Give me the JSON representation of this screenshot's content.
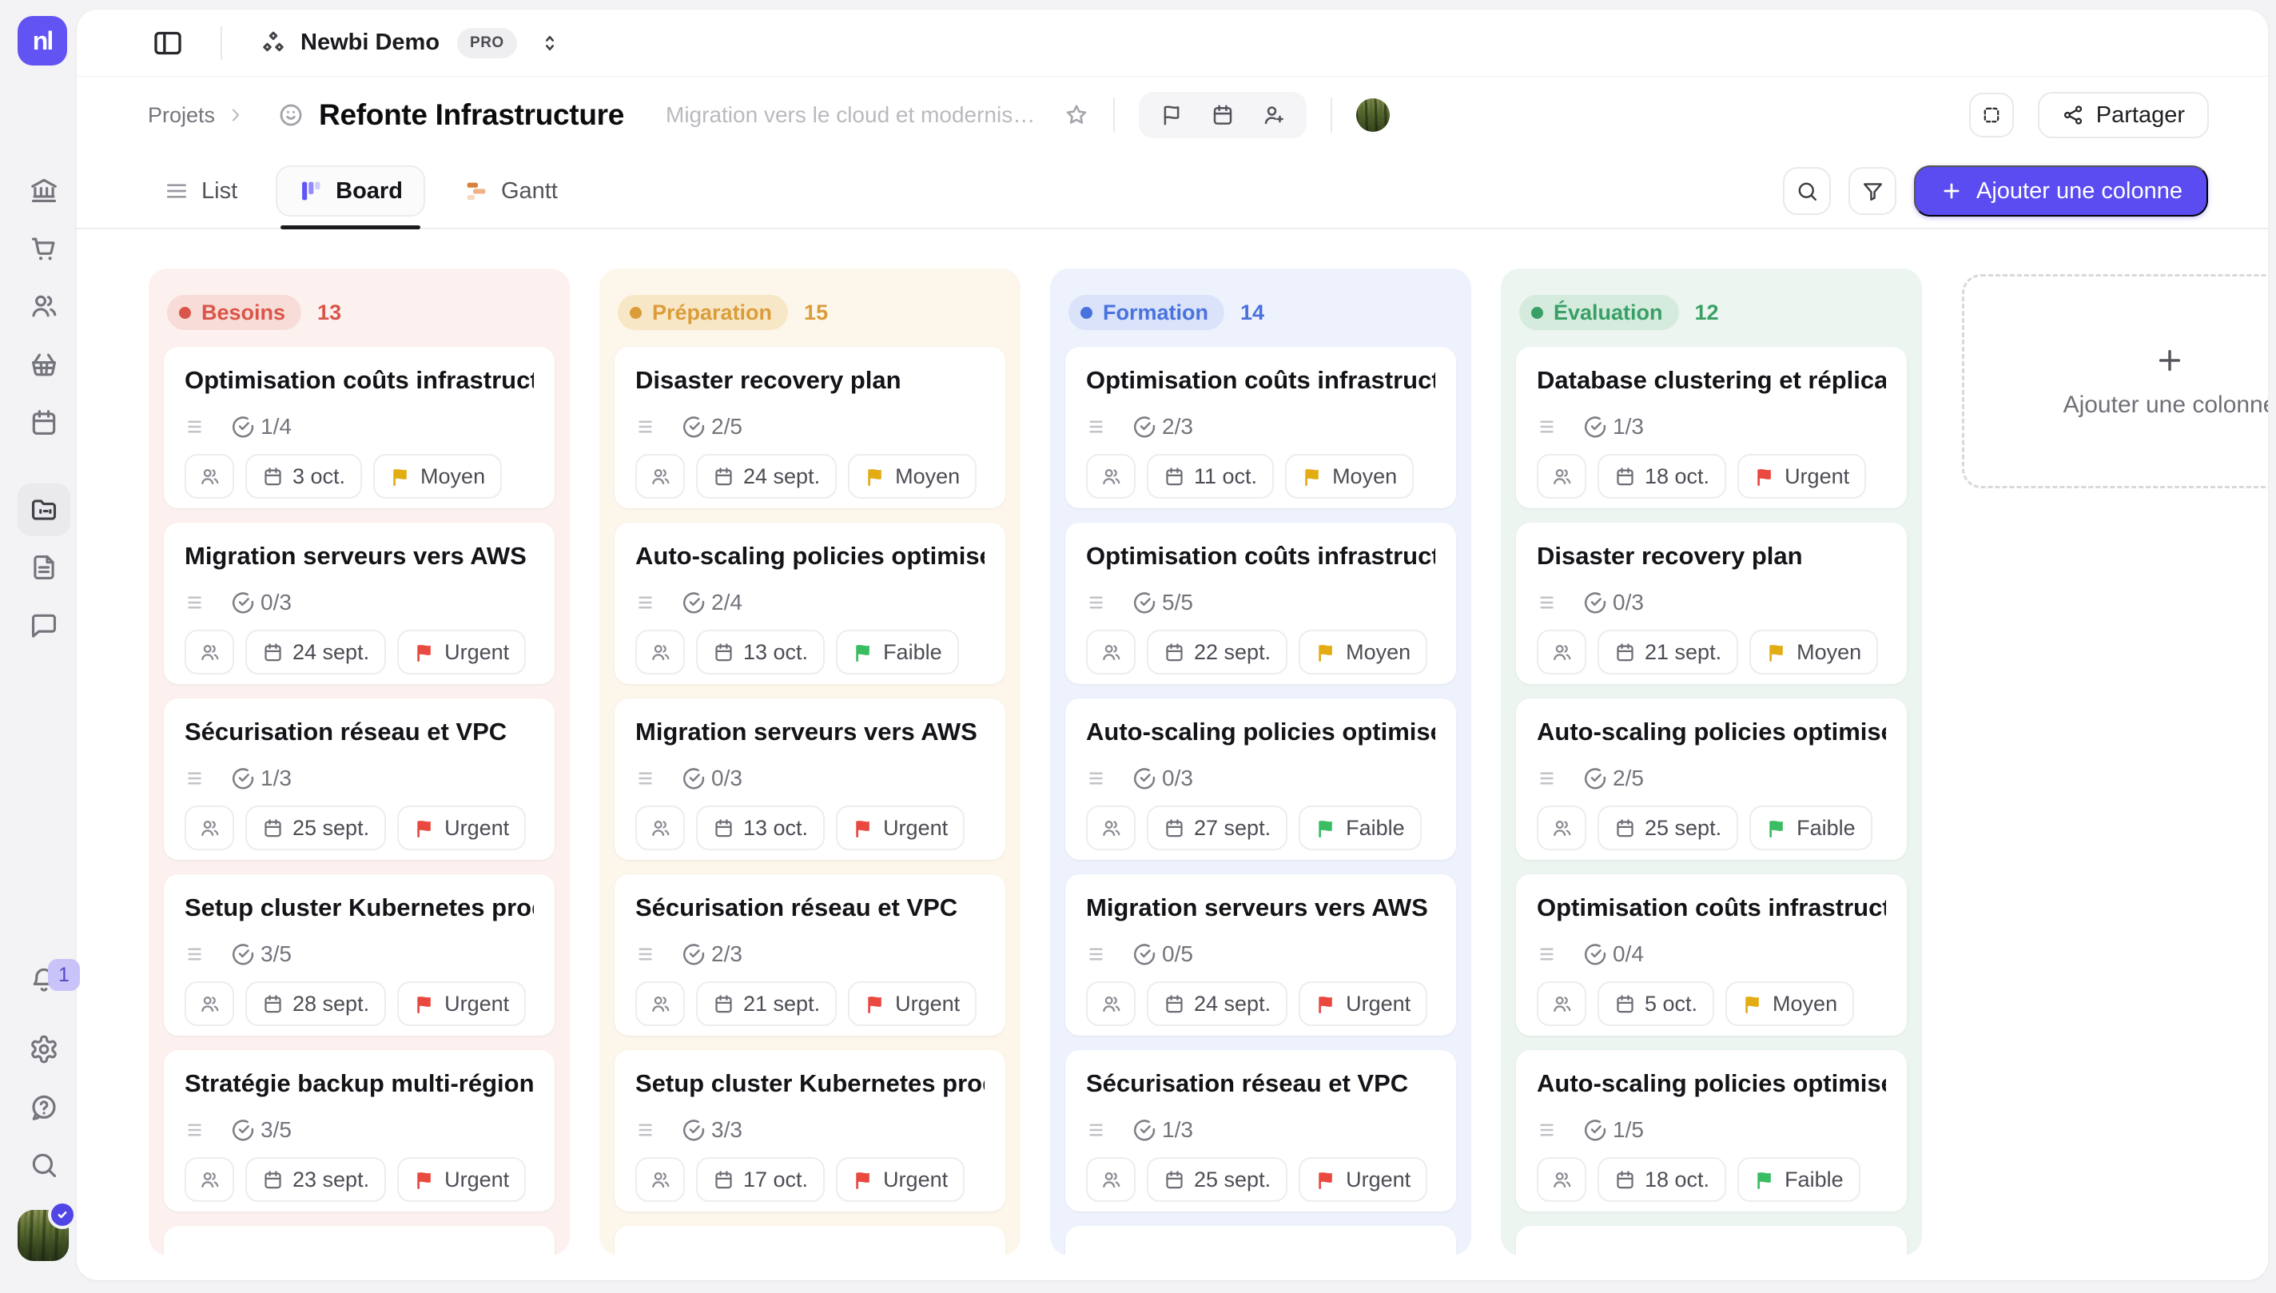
{
  "app": {
    "logo_text": "nl",
    "workspace": "Newbi Demo",
    "plan_badge": "PRO"
  },
  "sidebar": {
    "top_items": [
      {
        "id": "dashboard",
        "active": false
      },
      {
        "id": "bank",
        "active": false
      },
      {
        "id": "cart",
        "active": false
      },
      {
        "id": "users",
        "active": false
      },
      {
        "id": "basket",
        "active": false
      },
      {
        "id": "calendar",
        "active": false
      },
      {
        "id": "projects",
        "active": true
      },
      {
        "id": "documents",
        "active": false
      },
      {
        "id": "chat",
        "active": false
      }
    ],
    "bottom_items": [
      {
        "id": "notifications"
      },
      {
        "id": "settings"
      },
      {
        "id": "help"
      },
      {
        "id": "search"
      }
    ],
    "notification_count": "1"
  },
  "header": {
    "breadcrumb": "Projets",
    "title": "Refonte Infrastructure",
    "subtitle": "Migration vers le cloud et modernis…",
    "share_label": "Partager"
  },
  "tabs": [
    {
      "label": "List",
      "active": false
    },
    {
      "label": "Board",
      "active": true
    },
    {
      "label": "Gantt",
      "active": false
    }
  ],
  "toolbar": {
    "add_column_label": "Ajouter une colonne"
  },
  "board": {
    "add_column_placeholder": "Ajouter une colonne",
    "columns": [
      {
        "name": "Besoins",
        "count": "13",
        "color": "red",
        "cards": [
          {
            "title": "Optimisation coûts infrastructure",
            "progress": "1/4",
            "date": "3 oct.",
            "priority": "Moyen"
          },
          {
            "title": "Migration serveurs vers AWS ECS",
            "progress": "0/3",
            "date": "24 sept.",
            "priority": "Urgent"
          },
          {
            "title": "Sécurisation réseau et VPC",
            "progress": "1/3",
            "date": "25 sept.",
            "priority": "Urgent"
          },
          {
            "title": "Setup cluster Kubernetes produ…",
            "progress": "3/5",
            "date": "28 sept.",
            "priority": "Urgent"
          },
          {
            "title": "Stratégie backup multi-région",
            "progress": "3/5",
            "date": "23 sept.",
            "priority": "Urgent"
          }
        ]
      },
      {
        "name": "Préparation",
        "count": "15",
        "color": "orange",
        "cards": [
          {
            "title": "Disaster recovery plan",
            "progress": "2/5",
            "date": "24 sept.",
            "priority": "Moyen"
          },
          {
            "title": "Auto-scaling policies optimisées",
            "progress": "2/4",
            "date": "13 oct.",
            "priority": "Faible"
          },
          {
            "title": "Migration serveurs vers AWS ECS",
            "progress": "0/3",
            "date": "13 oct.",
            "priority": "Urgent"
          },
          {
            "title": "Sécurisation réseau et VPC",
            "progress": "2/3",
            "date": "21 sept.",
            "priority": "Urgent"
          },
          {
            "title": "Setup cluster Kubernetes produ…",
            "progress": "3/3",
            "date": "17 oct.",
            "priority": "Urgent"
          }
        ]
      },
      {
        "name": "Formation",
        "count": "14",
        "color": "blue",
        "cards": [
          {
            "title": "Optimisation coûts infrastructure",
            "progress": "2/3",
            "date": "11 oct.",
            "priority": "Moyen"
          },
          {
            "title": "Optimisation coûts infrastructure",
            "progress": "5/5",
            "date": "22 sept.",
            "priority": "Moyen"
          },
          {
            "title": "Auto-scaling policies optimisées",
            "progress": "0/3",
            "date": "27 sept.",
            "priority": "Faible"
          },
          {
            "title": "Migration serveurs vers AWS ECS",
            "progress": "0/5",
            "date": "24 sept.",
            "priority": "Urgent"
          },
          {
            "title": "Sécurisation réseau et VPC",
            "progress": "1/3",
            "date": "25 sept.",
            "priority": "Urgent"
          }
        ]
      },
      {
        "name": "Évaluation",
        "count": "12",
        "color": "green",
        "cards": [
          {
            "title": "Database clustering et réplicati…",
            "progress": "1/3",
            "date": "18 oct.",
            "priority": "Urgent"
          },
          {
            "title": "Disaster recovery plan",
            "progress": "0/3",
            "date": "21 sept.",
            "priority": "Moyen"
          },
          {
            "title": "Auto-scaling policies optimisées",
            "progress": "2/5",
            "date": "25 sept.",
            "priority": "Faible"
          },
          {
            "title": "Optimisation coûts infrastructure",
            "progress": "0/4",
            "date": "5 oct.",
            "priority": "Moyen"
          },
          {
            "title": "Auto-scaling policies optimisées",
            "progress": "1/5",
            "date": "18 oct.",
            "priority": "Faible"
          }
        ]
      }
    ]
  },
  "colors": {
    "accent": "#5a4cf0",
    "logo": "#6254f3",
    "priority": {
      "Moyen": "#e3ac12",
      "Urgent": "#e9493f",
      "Faible": "#3abd62"
    },
    "columns": {
      "red": {
        "bg": "#fcf1ef",
        "pill": "#f8dcd7",
        "text": "#d95549"
      },
      "orange": {
        "bg": "#fdf6eb",
        "pill": "#f7e7c7",
        "text": "#db9c3a"
      },
      "blue": {
        "bg": "#eef2fd",
        "pill": "#dae3fa",
        "text": "#4a72dd"
      },
      "green": {
        "bg": "#ecf5f0",
        "pill": "#d5ebdd",
        "text": "#38a066"
      }
    }
  }
}
